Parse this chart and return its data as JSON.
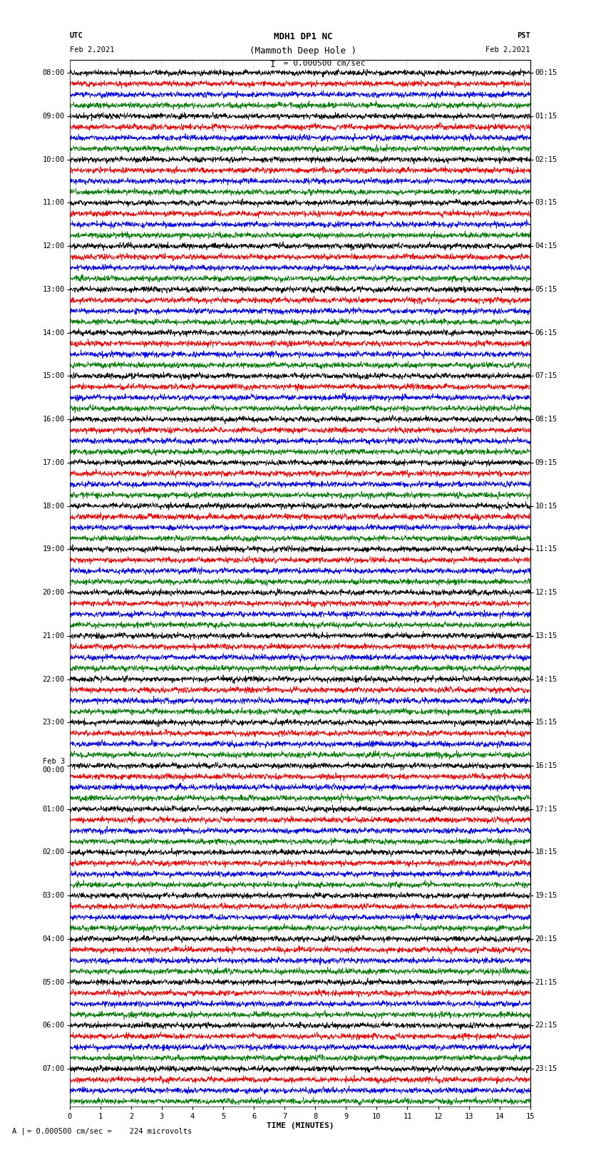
{
  "title_line1": "MDH1 DP1 NC",
  "title_line2": "(Mammoth Deep Hole )",
  "title_line3": "I = 0.000500 cm/sec",
  "left_label": "UTC",
  "left_date": "Feb 2,2021",
  "right_label": "PST",
  "right_date": "Feb 2,2021",
  "xlabel": "TIME (MINUTES)",
  "footer": "= 0.000500 cm/sec =    224 microvolts",
  "xmin": 0,
  "xmax": 15,
  "colors": [
    "black",
    "red",
    "blue",
    "green"
  ],
  "utc_times": [
    "08:00",
    "",
    "",
    "",
    "09:00",
    "",
    "",
    "",
    "10:00",
    "",
    "",
    "",
    "11:00",
    "",
    "",
    "",
    "12:00",
    "",
    "",
    "",
    "13:00",
    "",
    "",
    "",
    "14:00",
    "",
    "",
    "",
    "15:00",
    "",
    "",
    "",
    "16:00",
    "",
    "",
    "",
    "17:00",
    "",
    "",
    "",
    "18:00",
    "",
    "",
    "",
    "19:00",
    "",
    "",
    "",
    "20:00",
    "",
    "",
    "",
    "21:00",
    "",
    "",
    "",
    "22:00",
    "",
    "",
    "",
    "23:00",
    "",
    "",
    "",
    "Feb 3\n00:00",
    "",
    "",
    "",
    "01:00",
    "",
    "",
    "",
    "02:00",
    "",
    "",
    "",
    "03:00",
    "",
    "",
    "",
    "04:00",
    "",
    "",
    "",
    "05:00",
    "",
    "",
    "",
    "06:00",
    "",
    "",
    "",
    "07:00",
    "",
    "",
    ""
  ],
  "pst_times": [
    "00:15",
    "",
    "",
    "",
    "01:15",
    "",
    "",
    "",
    "02:15",
    "",
    "",
    "",
    "03:15",
    "",
    "",
    "",
    "04:15",
    "",
    "",
    "",
    "05:15",
    "",
    "",
    "",
    "06:15",
    "",
    "",
    "",
    "07:15",
    "",
    "",
    "",
    "08:15",
    "",
    "",
    "",
    "09:15",
    "",
    "",
    "",
    "10:15",
    "",
    "",
    "",
    "11:15",
    "",
    "",
    "",
    "12:15",
    "",
    "",
    "",
    "13:15",
    "",
    "",
    "",
    "14:15",
    "",
    "",
    "",
    "15:15",
    "",
    "",
    "",
    "16:15",
    "",
    "",
    "",
    "17:15",
    "",
    "",
    "",
    "18:15",
    "",
    "",
    "",
    "19:15",
    "",
    "",
    "",
    "20:15",
    "",
    "",
    "",
    "21:15",
    "",
    "",
    "",
    "22:15",
    "",
    "",
    "",
    "23:15",
    "",
    "",
    ""
  ],
  "n_traces": 96,
  "noise_seed": 42,
  "fig_width": 8.5,
  "fig_height": 16.13,
  "bg_color": "white",
  "trace_linewidth": 0.5,
  "font_size_title": 9,
  "font_size_axis": 8,
  "font_size_tick": 7.5,
  "font_family": "monospace"
}
